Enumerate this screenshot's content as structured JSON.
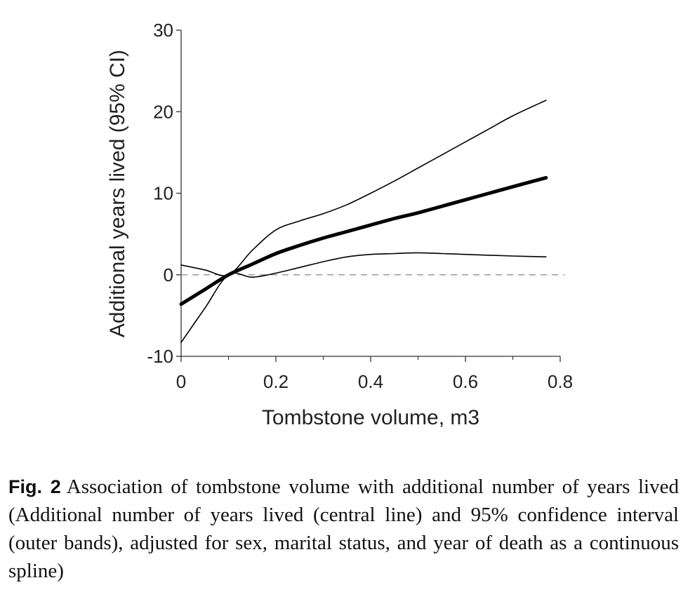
{
  "chart_data": {
    "type": "line",
    "xlabel": "Tombstone volume, m3",
    "ylabel": "Additional years lived (95% CI)",
    "xlim": [
      0,
      0.8
    ],
    "ylim": [
      -10,
      30
    ],
    "x_ticks": [
      0,
      0.2,
      0.4,
      0.6,
      0.8
    ],
    "x_tick_labels": [
      "0",
      "0.2",
      "0.4",
      "0.6",
      "0.8"
    ],
    "y_ticks": [
      -10,
      0,
      10,
      20,
      30
    ],
    "y_tick_labels": [
      "-10",
      "0",
      "10",
      "20",
      "30"
    ],
    "reference_line": {
      "y": 0,
      "style": "dashed"
    },
    "grid": false,
    "legend": "none",
    "series": [
      {
        "role": "central",
        "x": [
          0,
          0.05,
          0.1,
          0.15,
          0.2,
          0.25,
          0.3,
          0.35,
          0.4,
          0.45,
          0.5,
          0.55,
          0.6,
          0.65,
          0.7,
          0.77
        ],
        "values": [
          -3.6,
          -1.8,
          0,
          1.3,
          2.6,
          3.6,
          4.5,
          5.3,
          6.1,
          6.9,
          7.6,
          8.4,
          9.2,
          10.0,
          10.8,
          11.9
        ]
      },
      {
        "role": "upper",
        "x": [
          0,
          0.05,
          0.1,
          0.15,
          0.2,
          0.25,
          0.3,
          0.35,
          0.4,
          0.45,
          0.5,
          0.55,
          0.6,
          0.65,
          0.7,
          0.77
        ],
        "values": [
          1.2,
          0.6,
          0,
          3.0,
          5.5,
          6.6,
          7.5,
          8.6,
          10.0,
          11.5,
          13.1,
          14.7,
          16.3,
          17.9,
          19.5,
          21.4
        ]
      },
      {
        "role": "lower",
        "x": [
          0,
          0.05,
          0.1,
          0.15,
          0.2,
          0.25,
          0.3,
          0.35,
          0.4,
          0.45,
          0.5,
          0.55,
          0.6,
          0.65,
          0.7,
          0.77
        ],
        "values": [
          -8.3,
          -4.1,
          0,
          -0.3,
          0.2,
          0.9,
          1.6,
          2.2,
          2.5,
          2.6,
          2.7,
          2.6,
          2.5,
          2.4,
          2.3,
          2.2
        ]
      }
    ]
  },
  "caption": {
    "label": "Fig. 2",
    "text": "Association of tombstone volume with additional number of years lived (Additional number of years lived (central line) and 95% confidence interval (outer bands), adjusted for sex, marital status, and year of death as a continuous spline)"
  }
}
